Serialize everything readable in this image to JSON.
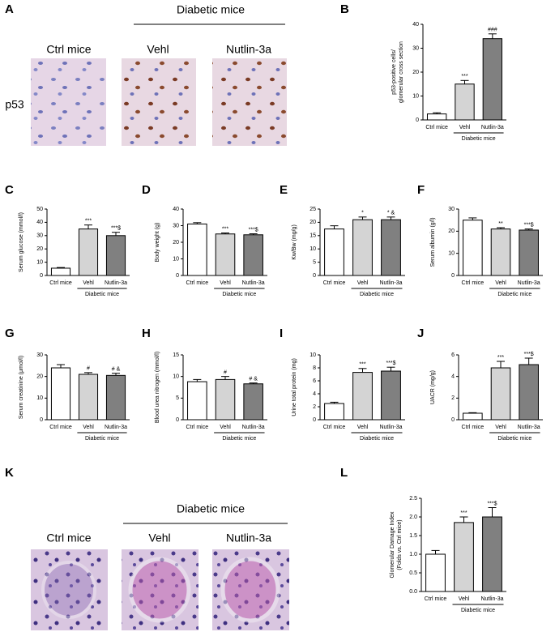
{
  "panels": {
    "A": {
      "letter": "A",
      "group": "Diabetic mice",
      "columns": [
        "Ctrl mice",
        "Vehl",
        "Nutlin-3a"
      ],
      "row": "p53"
    },
    "K": {
      "letter": "K",
      "group": "Diabetic mice",
      "columns": [
        "Ctrl mice",
        "Vehl",
        "Nutlin-3a"
      ]
    }
  },
  "chart_data": [
    {
      "type": "bar",
      "letter": "B",
      "ylabel": [
        "p53-positive cells/",
        "glomerular cross section"
      ],
      "categories": [
        "Ctrl mice",
        "Vehl",
        "Nutlin-3a"
      ],
      "group_label": "Diabetic mice",
      "values": [
        2.5,
        15,
        34
      ],
      "errors": [
        0.5,
        1.5,
        2
      ],
      "annotations": [
        "",
        "***",
        "###"
      ],
      "colors": [
        "#ffffff",
        "#d4d4d4",
        "#808080"
      ],
      "ylim": [
        0,
        40
      ],
      "yticks": [
        0,
        10,
        20,
        30,
        40
      ]
    },
    {
      "type": "bar",
      "letter": "C",
      "ylabel": "Serum glucose (mmol/l)",
      "categories": [
        "Ctrl mice",
        "Vehl",
        "Nutlin-3a"
      ],
      "group_label": "Diabetic mice",
      "values": [
        5.5,
        35,
        30
      ],
      "errors": [
        0.5,
        3,
        2.5
      ],
      "annotations": [
        "",
        "***",
        "***$"
      ],
      "colors": [
        "#ffffff",
        "#d4d4d4",
        "#808080"
      ],
      "ylim": [
        0,
        50
      ],
      "yticks": [
        0,
        10,
        20,
        30,
        40,
        50
      ]
    },
    {
      "type": "bar",
      "letter": "D",
      "ylabel": "Body weight (g)",
      "categories": [
        "Ctrl mice",
        "Vehl",
        "Nutlin-3a"
      ],
      "group_label": "Diabetic mice",
      "values": [
        31,
        25,
        24.5
      ],
      "errors": [
        0.8,
        0.6,
        0.6
      ],
      "annotations": [
        "",
        "***",
        "***$"
      ],
      "colors": [
        "#ffffff",
        "#d4d4d4",
        "#808080"
      ],
      "ylim": [
        0,
        40
      ],
      "yticks": [
        0,
        10,
        20,
        30,
        40
      ]
    },
    {
      "type": "bar",
      "letter": "E",
      "ylabel": "Kw/Bw (mg/g)",
      "categories": [
        "Ctrl mice",
        "Vehl",
        "Nutlin-3a"
      ],
      "group_label": "Diabetic mice",
      "values": [
        17.5,
        21,
        21
      ],
      "errors": [
        1.2,
        1,
        1
      ],
      "annotations": [
        "",
        "*",
        "* &"
      ],
      "colors": [
        "#ffffff",
        "#d4d4d4",
        "#808080"
      ],
      "ylim": [
        0,
        25
      ],
      "yticks": [
        0,
        5,
        10,
        15,
        20,
        25
      ]
    },
    {
      "type": "bar",
      "letter": "F",
      "ylabel": "Serum albumin (g/l)",
      "categories": [
        "Ctrl mice",
        "Vehl",
        "Nutlin-3a"
      ],
      "group_label": "Diabetic mice",
      "values": [
        25,
        21,
        20.5
      ],
      "errors": [
        1,
        0.6,
        0.5
      ],
      "annotations": [
        "",
        "**",
        "***$"
      ],
      "colors": [
        "#ffffff",
        "#d4d4d4",
        "#808080"
      ],
      "ylim": [
        0,
        30
      ],
      "yticks": [
        0,
        10,
        20,
        30
      ]
    },
    {
      "type": "bar",
      "letter": "G",
      "ylabel": "Serum creatinine (μmol/l)",
      "categories": [
        "Ctrl mice",
        "Vehl",
        "Nutlin-3a"
      ],
      "group_label": "Diabetic mice",
      "values": [
        24,
        21,
        20.5
      ],
      "errors": [
        1.5,
        0.8,
        1
      ],
      "annotations": [
        "",
        "#",
        "# &"
      ],
      "colors": [
        "#ffffff",
        "#d4d4d4",
        "#808080"
      ],
      "ylim": [
        0,
        30
      ],
      "yticks": [
        0,
        10,
        20,
        30
      ]
    },
    {
      "type": "bar",
      "letter": "H",
      "ylabel": "Blood urea nitrogen (mmol/l)",
      "categories": [
        "Ctrl mice",
        "Vehl",
        "Nutlin-3a"
      ],
      "group_label": "Diabetic mice",
      "values": [
        8.8,
        9.3,
        8.3
      ],
      "errors": [
        0.5,
        0.7,
        0.2
      ],
      "annotations": [
        "",
        "#",
        "# &"
      ],
      "colors": [
        "#ffffff",
        "#d4d4d4",
        "#808080"
      ],
      "ylim": [
        0,
        15
      ],
      "yticks": [
        0,
        5,
        10,
        15
      ]
    },
    {
      "type": "bar",
      "letter": "I",
      "ylabel": "Urine total protein (mg)",
      "categories": [
        "Ctrl mice",
        "Vehl",
        "Nutlin-3a"
      ],
      "group_label": "Diabetic mice",
      "values": [
        2.5,
        7.3,
        7.5
      ],
      "errors": [
        0.2,
        0.6,
        0.6
      ],
      "annotations": [
        "",
        "***",
        "***$"
      ],
      "colors": [
        "#ffffff",
        "#d4d4d4",
        "#808080"
      ],
      "ylim": [
        0,
        10
      ],
      "yticks": [
        0,
        2,
        4,
        6,
        8,
        10
      ]
    },
    {
      "type": "bar",
      "letter": "J",
      "ylabel": "UACR (mg/g)",
      "categories": [
        "Ctrl mice",
        "Vehl",
        "Nutlin-3a"
      ],
      "group_label": "Diabetic mice",
      "values": [
        0.6,
        4.8,
        5.1
      ],
      "errors": [
        0.05,
        0.6,
        0.6
      ],
      "annotations": [
        "",
        "***",
        "***$"
      ],
      "colors": [
        "#ffffff",
        "#d4d4d4",
        "#808080"
      ],
      "ylim": [
        0,
        6
      ],
      "yticks": [
        0,
        2,
        4,
        6
      ]
    },
    {
      "type": "bar",
      "letter": "L",
      "ylabel": [
        "Glomerular Damage Index",
        "(Folds vs. Ctrl mice)"
      ],
      "categories": [
        "Ctrl mice",
        "Vehl",
        "Nutlin-3a"
      ],
      "group_label": "Diabetic mice",
      "values": [
        1.0,
        1.85,
        2.0
      ],
      "errors": [
        0.1,
        0.15,
        0.25
      ],
      "annotations": [
        "",
        "***",
        "***$"
      ],
      "colors": [
        "#ffffff",
        "#d4d4d4",
        "#808080"
      ],
      "ylim": [
        0,
        2.5
      ],
      "yticks": [
        {
          "value": 0,
          "label": "0.0"
        },
        {
          "value": 0.5,
          "label": "0.5"
        },
        {
          "value": 1,
          "label": "1.0"
        },
        {
          "value": 1.5,
          "label": "1.5"
        },
        {
          "value": 2,
          "label": "2.0"
        },
        {
          "value": 2.5,
          "label": "2.5"
        }
      ]
    }
  ]
}
